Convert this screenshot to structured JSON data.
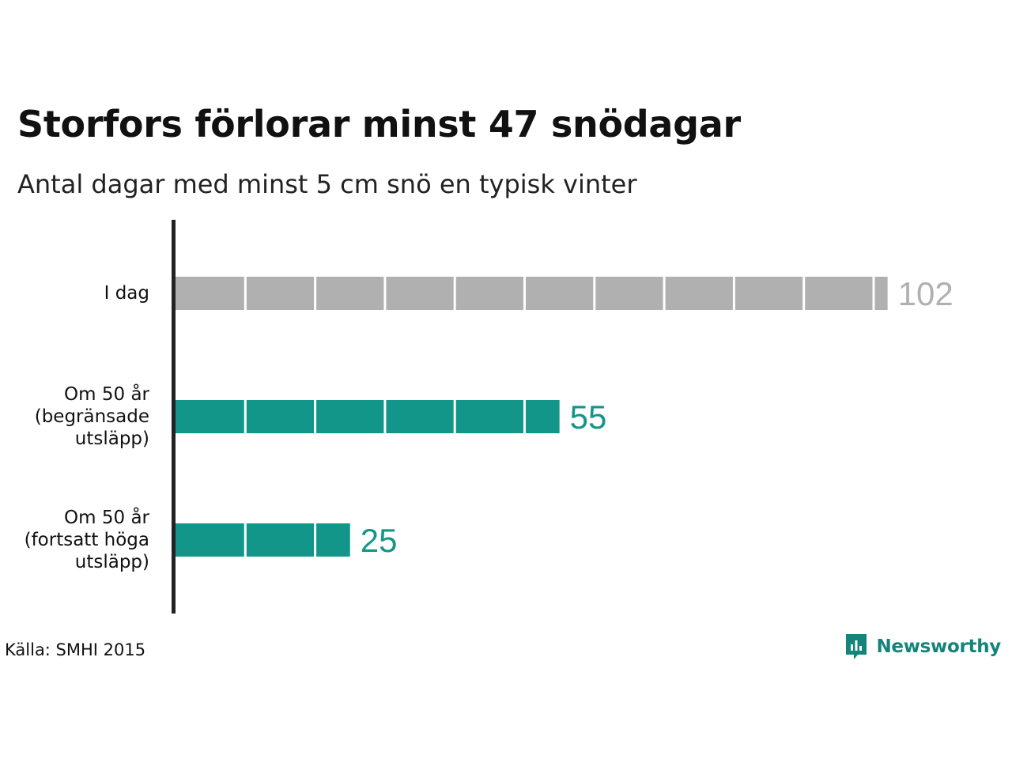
{
  "title": "Storfors förlorar minst 47 snödagar",
  "subtitle": "Antal dagar med minst 5 cm snö en typisk vinter",
  "source": "Källa: SMHI 2015",
  "brand": {
    "name": "Newsworthy",
    "icon": "newsworthy-logo-icon",
    "color": "#14847a"
  },
  "chart_data": {
    "type": "bar",
    "orientation": "horizontal",
    "categories": [
      [
        "I dag"
      ],
      [
        "Om 50 år",
        "(begränsade",
        "utsläpp)"
      ],
      [
        "Om 50 år",
        "(fortsatt höga",
        "utsläpp)"
      ]
    ],
    "values": [
      102,
      55,
      25
    ],
    "value_labels": [
      "102",
      "55",
      "25"
    ],
    "colors": [
      "#b0b0b0",
      "#13968a",
      "#13968a"
    ],
    "segment_size": 10,
    "xlim": [
      0,
      102
    ]
  }
}
